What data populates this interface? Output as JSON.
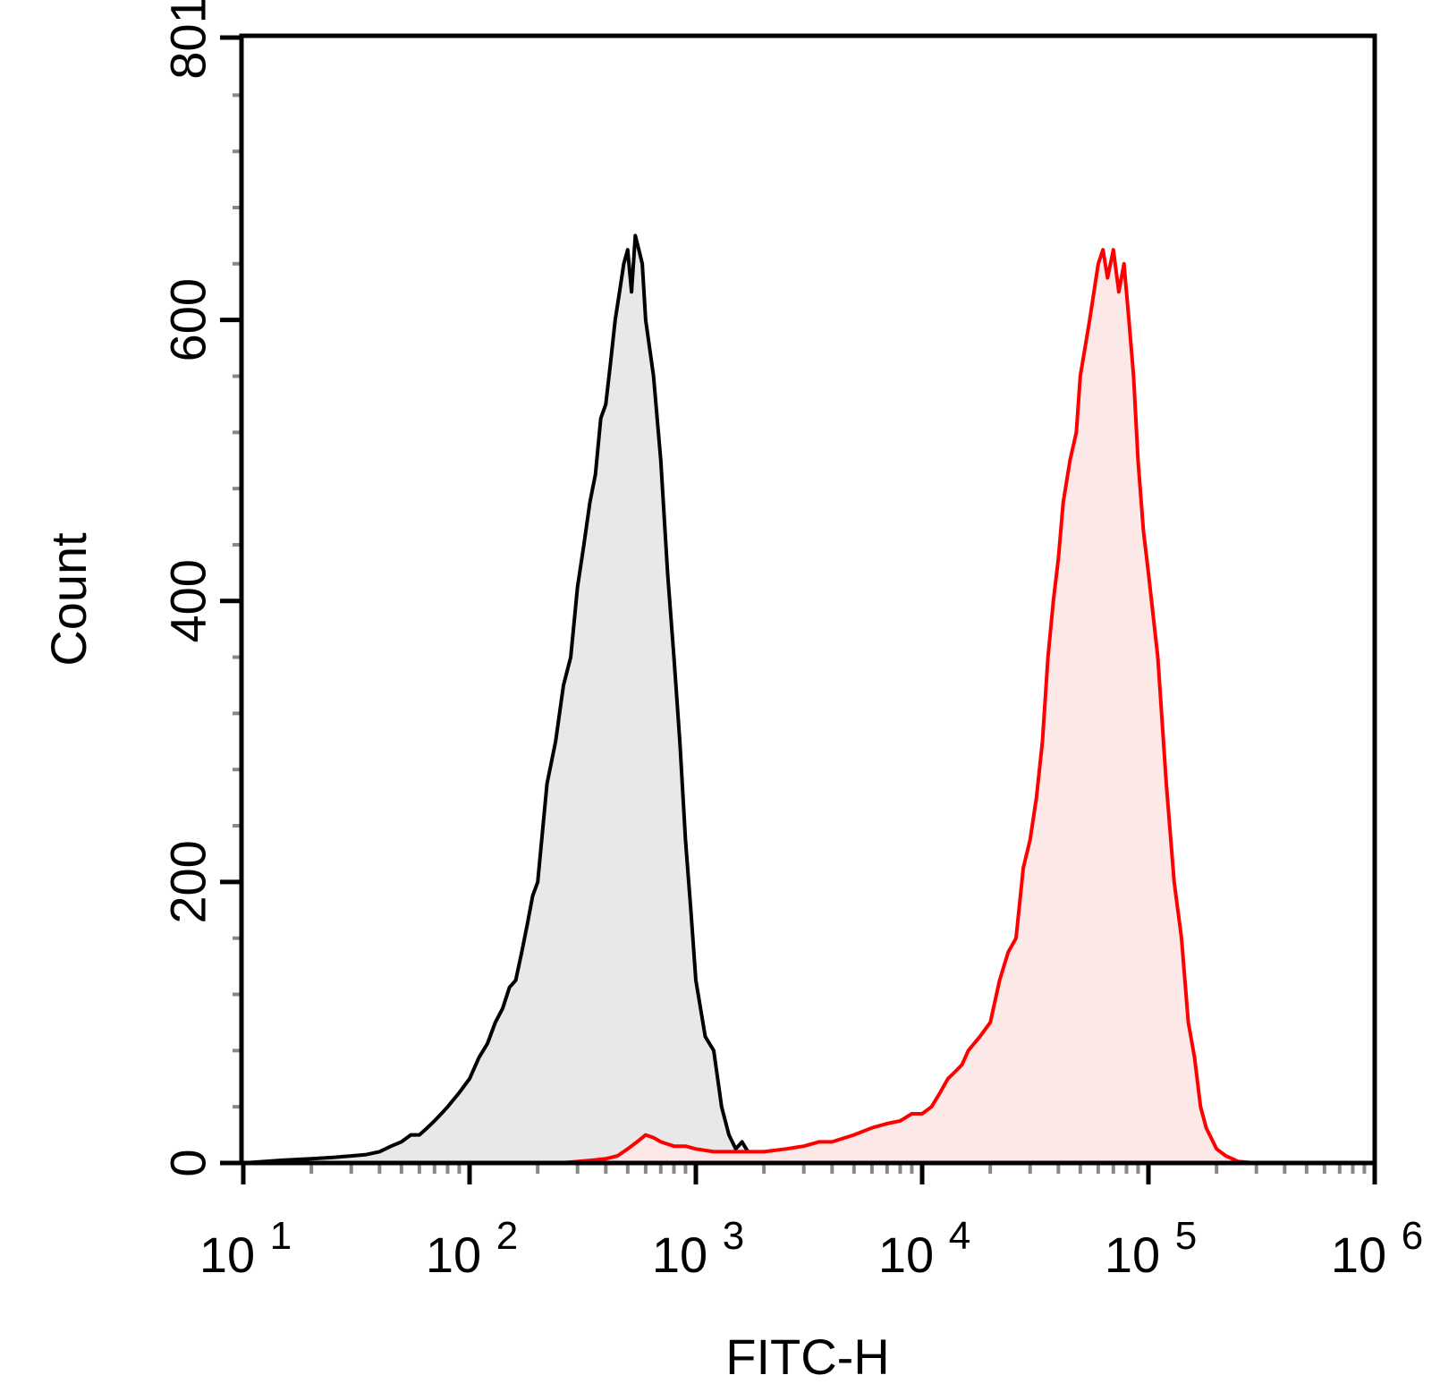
{
  "chart_data": {
    "type": "area",
    "title": "",
    "xlabel": "FITC-H",
    "ylabel": "Count",
    "xscale": "log",
    "xlim": [
      10,
      1000000
    ],
    "ylim": [
      0,
      801
    ],
    "x_ticks": [
      {
        "base": "10",
        "exp": "1",
        "value": 10
      },
      {
        "base": "10",
        "exp": "2",
        "value": 100
      },
      {
        "base": "10",
        "exp": "3",
        "value": 1000
      },
      {
        "base": "10",
        "exp": "4",
        "value": 10000
      },
      {
        "base": "10",
        "exp": "5",
        "value": 100000
      },
      {
        "base": "10",
        "exp": "6",
        "value": 1000000
      }
    ],
    "y_ticks": [
      "0",
      "200",
      "400",
      "600",
      "801"
    ],
    "y_tick_values": [
      0,
      200,
      400,
      600,
      801
    ],
    "grid": false,
    "legend": "none",
    "series": [
      {
        "color": "#000000",
        "fill": "#e8e8e8",
        "x": [
          10,
          15,
          20,
          25,
          30,
          35,
          40,
          45,
          50,
          55,
          60,
          65,
          70,
          75,
          80,
          90,
          100,
          110,
          120,
          130,
          140,
          150,
          160,
          170,
          180,
          190,
          200,
          220,
          240,
          260,
          280,
          300,
          320,
          340,
          360,
          380,
          400,
          420,
          440,
          460,
          480,
          500,
          520,
          540,
          560,
          580,
          600,
          650,
          700,
          750,
          800,
          850,
          900,
          950,
          1000,
          1100,
          1200,
          1300,
          1400,
          1500,
          1600,
          1700,
          1800,
          2000,
          2500,
          3000,
          4000,
          6000,
          10000
        ],
        "y": [
          0,
          2,
          3,
          4,
          5,
          6,
          8,
          12,
          15,
          20,
          20,
          25,
          30,
          35,
          40,
          50,
          60,
          75,
          85,
          100,
          110,
          125,
          130,
          150,
          170,
          190,
          200,
          270,
          300,
          340,
          360,
          410,
          440,
          470,
          490,
          530,
          540,
          570,
          600,
          620,
          640,
          650,
          620,
          660,
          650,
          640,
          600,
          560,
          500,
          420,
          360,
          300,
          230,
          180,
          130,
          90,
          80,
          40,
          20,
          10,
          15,
          8,
          5,
          3,
          2,
          1,
          1,
          0,
          0
        ]
      },
      {
        "color": "#ff0000",
        "fill": "#fde8e8",
        "x": [
          100,
          150,
          200,
          250,
          300,
          350,
          400,
          450,
          500,
          550,
          600,
          650,
          700,
          800,
          900,
          1000,
          1200,
          1500,
          2000,
          2500,
          3000,
          3500,
          4000,
          5000,
          6000,
          7000,
          8000,
          9000,
          10000,
          11000,
          12000,
          13000,
          14000,
          15000,
          16000,
          18000,
          20000,
          22000,
          24000,
          26000,
          28000,
          30000,
          32000,
          34000,
          36000,
          38000,
          40000,
          42000,
          45000,
          48000,
          50000,
          55000,
          60000,
          63000,
          66000,
          70000,
          74000,
          78000,
          82000,
          86000,
          90000,
          95000,
          100000,
          110000,
          120000,
          130000,
          140000,
          150000,
          160000,
          170000,
          180000,
          200000,
          220000,
          250000,
          300000,
          400000,
          1000000
        ],
        "y": [
          0,
          0,
          0,
          0,
          1,
          2,
          3,
          5,
          10,
          15,
          20,
          18,
          15,
          12,
          12,
          10,
          8,
          8,
          8,
          10,
          12,
          15,
          15,
          20,
          25,
          28,
          30,
          35,
          35,
          40,
          50,
          60,
          65,
          70,
          80,
          90,
          100,
          130,
          150,
          160,
          210,
          230,
          260,
          300,
          360,
          400,
          430,
          470,
          500,
          520,
          560,
          600,
          640,
          650,
          630,
          650,
          620,
          640,
          600,
          560,
          500,
          450,
          420,
          360,
          270,
          200,
          160,
          100,
          75,
          40,
          25,
          10,
          5,
          1,
          0,
          0,
          0
        ]
      }
    ]
  }
}
